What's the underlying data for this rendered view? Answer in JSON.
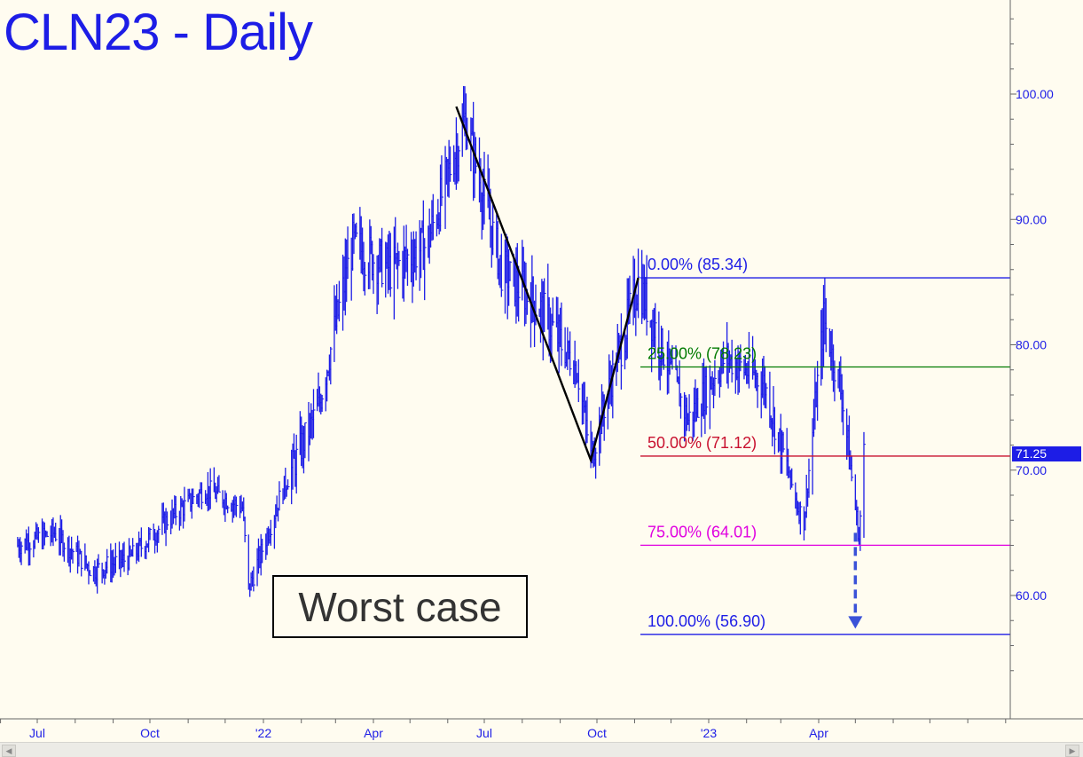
{
  "chart_data": {
    "type": "ohlc",
    "title": "CLN23 - Daily",
    "y_axis": {
      "side": "right",
      "ticks": [
        60,
        70,
        80,
        90,
        100
      ],
      "tick_labels": [
        "60.00",
        "70.00",
        "80.00",
        "90.00",
        "100.00"
      ],
      "range": [
        52,
        108
      ]
    },
    "x_axis": {
      "tick_labels": [
        "Jul",
        "Oct",
        "'22",
        "Apr",
        "Jul",
        "Oct",
        "'23",
        "Apr"
      ],
      "tick_dates": [
        "2021-07",
        "2021-10",
        "2022-01",
        "2022-04",
        "2022-07",
        "2022-10",
        "2023-01",
        "2023-04"
      ]
    },
    "last_price": "71.25",
    "price_path": [
      [
        "2021-06",
        64.0
      ],
      [
        "2021-07",
        65.0
      ],
      [
        "2021-08",
        62.0
      ],
      [
        "2021-09",
        63.0
      ],
      [
        "2021-10",
        66.0
      ],
      [
        "2021-11",
        68.5
      ],
      [
        "2021-12",
        67.0
      ],
      [
        "2021-12-20",
        60.5
      ],
      [
        "2022-01",
        68.0
      ],
      [
        "2022-02",
        75.0
      ],
      [
        "2022-03",
        88.0
      ],
      [
        "2022-04",
        86.0
      ],
      [
        "2022-05",
        88.0
      ],
      [
        "2022-06",
        98.0
      ],
      [
        "2022-07",
        86.0
      ],
      [
        "2022-08",
        83.0
      ],
      [
        "2022-09",
        78.0
      ],
      [
        "2022-09-26",
        71.0
      ],
      [
        "2022-10",
        78.0
      ],
      [
        "2022-11-04",
        85.0
      ],
      [
        "2022-12",
        74.0
      ],
      [
        "2023-01",
        79.0
      ],
      [
        "2023-02",
        77.0
      ],
      [
        "2023-03",
        67.0
      ],
      [
        "2023-03-20",
        66.0
      ],
      [
        "2023-04-05",
        82.0
      ],
      [
        "2023-04-20",
        76.0
      ],
      [
        "2023-05-04",
        64.5
      ],
      [
        "2023-05-08",
        71.25
      ]
    ],
    "abc_pattern": [
      {
        "date": "2022-06-08",
        "price": 99.0
      },
      {
        "date": "2022-09-26",
        "price": 70.8
      },
      {
        "date": "2022-11-04",
        "price": 85.34
      }
    ],
    "fib_levels": [
      {
        "label": "0.00% (85.34)",
        "price": 85.34,
        "color": "#1d1de6"
      },
      {
        "label": "25.00% (78.23)",
        "price": 78.23,
        "color": "#007a00"
      },
      {
        "label": "50.00% (71.12)",
        "price": 71.12,
        "color": "#c8102e"
      },
      {
        "label": "75.00% (64.01)",
        "price": 64.01,
        "color": "#e000e0"
      },
      {
        "label": "100.00% (56.90)",
        "price": 56.9,
        "color": "#1d1de6"
      }
    ],
    "target_arrow": {
      "from_price": 65.0,
      "to_price": 57.5,
      "date": "2023-05-01",
      "color": "#3a52d8"
    },
    "annotation": "Worst case"
  }
}
